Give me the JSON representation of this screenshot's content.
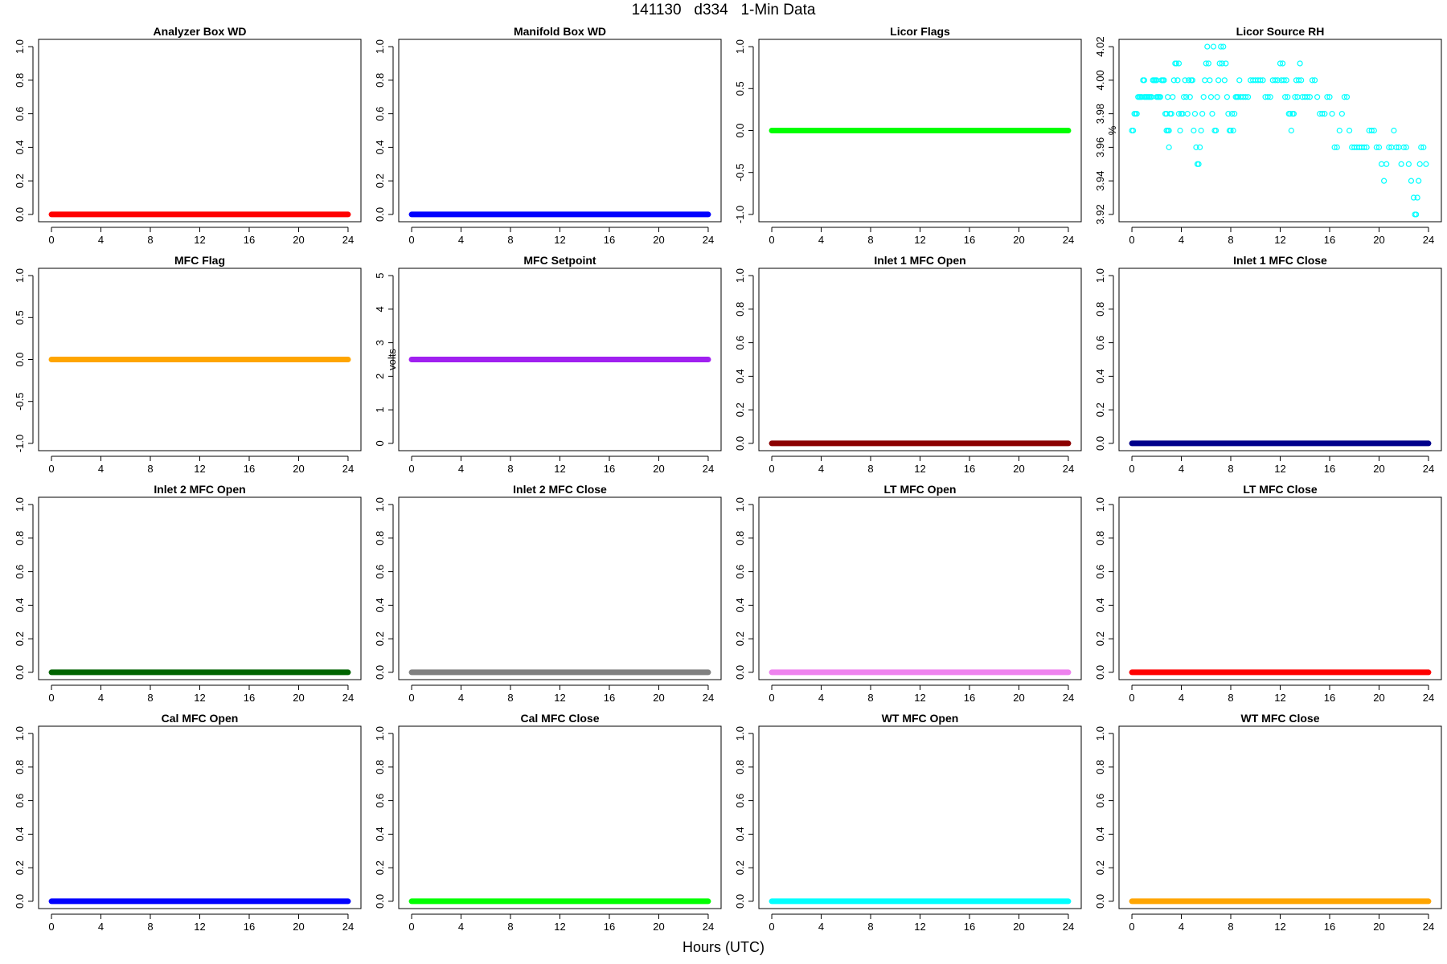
{
  "figure": {
    "title": "141130   d334   1-Min Data",
    "xlabel": "Hours (UTC)"
  },
  "chart_data": [
    {
      "type": "scatter",
      "title": "Analyzer Box WD",
      "ylabel": "",
      "xlim": [
        0,
        24
      ],
      "xticks": [
        0,
        4,
        8,
        12,
        16,
        20,
        24
      ],
      "ylim": [
        0,
        1
      ],
      "yticks": [
        "0.0",
        "0.2",
        "0.4",
        "0.6",
        "0.8",
        "1.0"
      ],
      "color": "#ff0000",
      "series": [
        {
          "x": [
            0,
            24
          ],
          "y": [
            0,
            0
          ],
          "note": "constant"
        }
      ]
    },
    {
      "type": "scatter",
      "title": "Manifold Box WD",
      "ylabel": "",
      "xlim": [
        0,
        24
      ],
      "xticks": [
        0,
        4,
        8,
        12,
        16,
        20,
        24
      ],
      "ylim": [
        0,
        1
      ],
      "yticks": [
        "0.0",
        "0.2",
        "0.4",
        "0.6",
        "0.8",
        "1.0"
      ],
      "color": "#0000ff",
      "series": [
        {
          "x": [
            0,
            24
          ],
          "y": [
            0,
            0
          ]
        }
      ]
    },
    {
      "type": "scatter",
      "title": "Licor Flags",
      "ylabel": "",
      "xlim": [
        0,
        24
      ],
      "xticks": [
        0,
        4,
        8,
        12,
        16,
        20,
        24
      ],
      "ylim": [
        -1,
        1
      ],
      "yticks": [
        "-1.0",
        "-0.5",
        "0.0",
        "0.5",
        "1.0"
      ],
      "color": "#00ff00",
      "series": [
        {
          "x": [
            0,
            24
          ],
          "y": [
            0,
            0
          ]
        }
      ]
    },
    {
      "type": "scatter",
      "title": "Licor Source RH",
      "ylabel": "%",
      "xlim": [
        0,
        24
      ],
      "xticks": [
        0,
        4,
        8,
        12,
        16,
        20,
        24
      ],
      "ylim": [
        3.92,
        4.02
      ],
      "yticks": [
        "3.92",
        "3.94",
        "3.96",
        "3.98",
        "4.00",
        "4.02"
      ],
      "color": "#00ffff",
      "points": [
        [
          0.0,
          3.97
        ],
        [
          0.1,
          3.97
        ],
        [
          0.2,
          3.98
        ],
        [
          0.3,
          3.98
        ],
        [
          0.4,
          3.98
        ],
        [
          0.5,
          3.99
        ],
        [
          0.6,
          3.99
        ],
        [
          0.7,
          3.99
        ],
        [
          0.8,
          3.99
        ],
        [
          0.9,
          4.0
        ],
        [
          1.0,
          4.0
        ],
        [
          1.0,
          3.99
        ],
        [
          1.1,
          3.99
        ],
        [
          1.2,
          3.99
        ],
        [
          1.3,
          3.99
        ],
        [
          1.4,
          3.99
        ],
        [
          1.5,
          3.99
        ],
        [
          1.6,
          3.99
        ],
        [
          1.7,
          4.0
        ],
        [
          1.8,
          4.0
        ],
        [
          1.9,
          4.0
        ],
        [
          2.0,
          4.0
        ],
        [
          2.0,
          3.99
        ],
        [
          2.1,
          3.99
        ],
        [
          2.2,
          3.99
        ],
        [
          2.3,
          3.99
        ],
        [
          2.4,
          4.0
        ],
        [
          2.5,
          4.0
        ],
        [
          2.6,
          4.0
        ],
        [
          2.7,
          3.98
        ],
        [
          2.8,
          3.97
        ],
        [
          2.8,
          3.98
        ],
        [
          2.9,
          3.99
        ],
        [
          2.9,
          3.97
        ],
        [
          3.0,
          3.96
        ],
        [
          3.0,
          3.97
        ],
        [
          3.1,
          3.98
        ],
        [
          3.2,
          3.98
        ],
        [
          3.3,
          3.99
        ],
        [
          3.4,
          4.0
        ],
        [
          3.5,
          4.01
        ],
        [
          3.6,
          4.01
        ],
        [
          3.7,
          4.0
        ],
        [
          3.8,
          4.01
        ],
        [
          3.8,
          3.98
        ],
        [
          3.9,
          3.97
        ],
        [
          4.0,
          3.98
        ],
        [
          4.1,
          3.98
        ],
        [
          4.2,
          3.99
        ],
        [
          4.3,
          4.0
        ],
        [
          4.4,
          3.99
        ],
        [
          4.5,
          3.98
        ],
        [
          4.6,
          4.0
        ],
        [
          4.7,
          3.99
        ],
        [
          4.8,
          4.0
        ],
        [
          4.9,
          4.0
        ],
        [
          5.0,
          3.97
        ],
        [
          5.1,
          3.98
        ],
        [
          5.2,
          3.96
        ],
        [
          5.3,
          3.95
        ],
        [
          5.4,
          3.95
        ],
        [
          5.5,
          3.96
        ],
        [
          5.6,
          3.97
        ],
        [
          5.7,
          3.98
        ],
        [
          5.8,
          3.99
        ],
        [
          5.9,
          4.0
        ],
        [
          6.0,
          4.01
        ],
        [
          6.1,
          4.02
        ],
        [
          6.2,
          4.01
        ],
        [
          6.3,
          4.0
        ],
        [
          6.4,
          3.99
        ],
        [
          6.5,
          3.98
        ],
        [
          6.6,
          4.02
        ],
        [
          6.7,
          3.97
        ],
        [
          6.8,
          3.97
        ],
        [
          6.9,
          3.99
        ],
        [
          7.0,
          4.0
        ],
        [
          7.1,
          4.01
        ],
        [
          7.2,
          4.02
        ],
        [
          7.3,
          4.01
        ],
        [
          7.4,
          4.02
        ],
        [
          7.5,
          4.0
        ],
        [
          7.6,
          4.01
        ],
        [
          7.7,
          3.99
        ],
        [
          7.8,
          3.98
        ],
        [
          7.9,
          3.97
        ],
        [
          8.0,
          3.97
        ],
        [
          8.1,
          3.98
        ],
        [
          8.2,
          3.97
        ],
        [
          8.3,
          3.98
        ],
        [
          8.4,
          3.99
        ],
        [
          8.5,
          3.99
        ],
        [
          8.6,
          3.99
        ],
        [
          8.7,
          4.0
        ],
        [
          8.8,
          3.99
        ],
        [
          9.0,
          3.99
        ],
        [
          9.2,
          3.99
        ],
        [
          9.4,
          3.99
        ],
        [
          9.6,
          4.0
        ],
        [
          9.8,
          4.0
        ],
        [
          10.0,
          4.0
        ],
        [
          10.2,
          4.0
        ],
        [
          10.4,
          4.0
        ],
        [
          10.6,
          4.0
        ],
        [
          10.8,
          3.99
        ],
        [
          11.0,
          3.99
        ],
        [
          11.2,
          3.99
        ],
        [
          11.4,
          4.0
        ],
        [
          11.6,
          4.0
        ],
        [
          11.8,
          4.0
        ],
        [
          12.0,
          4.01
        ],
        [
          12.1,
          4.0
        ],
        [
          12.2,
          4.01
        ],
        [
          12.3,
          4.0
        ],
        [
          12.4,
          3.99
        ],
        [
          12.5,
          4.0
        ],
        [
          12.6,
          3.99
        ],
        [
          12.7,
          3.98
        ],
        [
          12.8,
          3.98
        ],
        [
          12.9,
          3.97
        ],
        [
          13.0,
          3.98
        ],
        [
          13.1,
          3.98
        ],
        [
          13.2,
          3.99
        ],
        [
          13.3,
          4.0
        ],
        [
          13.4,
          3.99
        ],
        [
          13.5,
          4.0
        ],
        [
          13.6,
          4.01
        ],
        [
          13.7,
          4.0
        ],
        [
          13.8,
          3.99
        ],
        [
          14.0,
          3.99
        ],
        [
          14.2,
          3.99
        ],
        [
          14.4,
          3.99
        ],
        [
          14.6,
          4.0
        ],
        [
          14.8,
          4.0
        ],
        [
          15.0,
          3.99
        ],
        [
          15.2,
          3.98
        ],
        [
          15.4,
          3.98
        ],
        [
          15.6,
          3.98
        ],
        [
          15.8,
          3.99
        ],
        [
          16.0,
          3.99
        ],
        [
          16.2,
          3.98
        ],
        [
          16.4,
          3.96
        ],
        [
          16.6,
          3.96
        ],
        [
          16.8,
          3.97
        ],
        [
          17.0,
          3.98
        ],
        [
          17.2,
          3.99
        ],
        [
          17.4,
          3.99
        ],
        [
          17.6,
          3.97
        ],
        [
          17.8,
          3.96
        ],
        [
          18.0,
          3.96
        ],
        [
          18.2,
          3.96
        ],
        [
          18.4,
          3.96
        ],
        [
          18.6,
          3.96
        ],
        [
          18.8,
          3.96
        ],
        [
          19.0,
          3.96
        ],
        [
          19.2,
          3.97
        ],
        [
          19.4,
          3.97
        ],
        [
          19.6,
          3.97
        ],
        [
          19.8,
          3.96
        ],
        [
          20.0,
          3.96
        ],
        [
          20.2,
          3.95
        ],
        [
          20.4,
          3.94
        ],
        [
          20.6,
          3.95
        ],
        [
          20.8,
          3.96
        ],
        [
          21.0,
          3.96
        ],
        [
          21.2,
          3.97
        ],
        [
          21.4,
          3.96
        ],
        [
          21.6,
          3.96
        ],
        [
          21.8,
          3.95
        ],
        [
          22.0,
          3.96
        ],
        [
          22.2,
          3.96
        ],
        [
          22.4,
          3.95
        ],
        [
          22.6,
          3.94
        ],
        [
          22.8,
          3.93
        ],
        [
          22.9,
          3.92
        ],
        [
          23.0,
          3.92
        ],
        [
          23.1,
          3.93
        ],
        [
          23.2,
          3.94
        ],
        [
          23.3,
          3.95
        ],
        [
          23.4,
          3.96
        ],
        [
          23.6,
          3.96
        ],
        [
          23.8,
          3.95
        ]
      ]
    },
    {
      "type": "scatter",
      "title": "MFC Flag",
      "ylabel": "",
      "xlim": [
        0,
        24
      ],
      "xticks": [
        0,
        4,
        8,
        12,
        16,
        20,
        24
      ],
      "ylim": [
        -1,
        1
      ],
      "yticks": [
        "-1.0",
        "-0.5",
        "0.0",
        "0.5",
        "1.0"
      ],
      "color": "#ffa500",
      "series": [
        {
          "x": [
            0,
            24
          ],
          "y": [
            0,
            0
          ]
        }
      ]
    },
    {
      "type": "scatter",
      "title": "MFC Setpoint",
      "ylabel": "volts",
      "xlim": [
        0,
        24
      ],
      "xticks": [
        0,
        4,
        8,
        12,
        16,
        20,
        24
      ],
      "ylim": [
        0,
        5
      ],
      "yticks": [
        "0",
        "1",
        "2",
        "3",
        "4",
        "5"
      ],
      "color": "#a020f0",
      "series": [
        {
          "x": [
            0,
            24
          ],
          "y": [
            2.5,
            2.5
          ]
        }
      ]
    },
    {
      "type": "scatter",
      "title": "Inlet 1 MFC Open",
      "ylabel": "",
      "xlim": [
        0,
        24
      ],
      "xticks": [
        0,
        4,
        8,
        12,
        16,
        20,
        24
      ],
      "ylim": [
        0,
        1
      ],
      "yticks": [
        "0.0",
        "0.2",
        "0.4",
        "0.6",
        "0.8",
        "1.0"
      ],
      "color": "#8b0000",
      "series": [
        {
          "x": [
            0,
            24
          ],
          "y": [
            0,
            0
          ]
        }
      ]
    },
    {
      "type": "scatter",
      "title": "Inlet 1 MFC Close",
      "ylabel": "",
      "xlim": [
        0,
        24
      ],
      "xticks": [
        0,
        4,
        8,
        12,
        16,
        20,
        24
      ],
      "ylim": [
        0,
        1
      ],
      "yticks": [
        "0.0",
        "0.2",
        "0.4",
        "0.6",
        "0.8",
        "1.0"
      ],
      "color": "#00008b",
      "series": [
        {
          "x": [
            0,
            24
          ],
          "y": [
            0,
            0
          ]
        }
      ]
    },
    {
      "type": "scatter",
      "title": "Inlet 2 MFC Open",
      "ylabel": "",
      "xlim": [
        0,
        24
      ],
      "xticks": [
        0,
        4,
        8,
        12,
        16,
        20,
        24
      ],
      "ylim": [
        0,
        1
      ],
      "yticks": [
        "0.0",
        "0.2",
        "0.4",
        "0.6",
        "0.8",
        "1.0"
      ],
      "color": "#006400",
      "series": [
        {
          "x": [
            0,
            24
          ],
          "y": [
            0,
            0
          ]
        }
      ]
    },
    {
      "type": "scatter",
      "title": "Inlet 2 MFC Close",
      "ylabel": "",
      "xlim": [
        0,
        24
      ],
      "xticks": [
        0,
        4,
        8,
        12,
        16,
        20,
        24
      ],
      "ylim": [
        0,
        1
      ],
      "yticks": [
        "0.0",
        "0.2",
        "0.4",
        "0.6",
        "0.8",
        "1.0"
      ],
      "color": "#808080",
      "series": [
        {
          "x": [
            0,
            24
          ],
          "y": [
            0,
            0
          ]
        }
      ]
    },
    {
      "type": "scatter",
      "title": "LT MFC Open",
      "ylabel": "",
      "xlim": [
        0,
        24
      ],
      "xticks": [
        0,
        4,
        8,
        12,
        16,
        20,
        24
      ],
      "ylim": [
        0,
        1
      ],
      "yticks": [
        "0.0",
        "0.2",
        "0.4",
        "0.6",
        "0.8",
        "1.0"
      ],
      "color": "#ee82ee",
      "series": [
        {
          "x": [
            0,
            24
          ],
          "y": [
            0,
            0
          ]
        }
      ]
    },
    {
      "type": "scatter",
      "title": "LT MFC Close",
      "ylabel": "",
      "xlim": [
        0,
        24
      ],
      "xticks": [
        0,
        4,
        8,
        12,
        16,
        20,
        24
      ],
      "ylim": [
        0,
        1
      ],
      "yticks": [
        "0.0",
        "0.2",
        "0.4",
        "0.6",
        "0.8",
        "1.0"
      ],
      "color": "#ff0000",
      "series": [
        {
          "x": [
            0,
            24
          ],
          "y": [
            0,
            0
          ]
        }
      ]
    },
    {
      "type": "scatter",
      "title": "Cal MFC Open",
      "ylabel": "",
      "xlim": [
        0,
        24
      ],
      "xticks": [
        0,
        4,
        8,
        12,
        16,
        20,
        24
      ],
      "ylim": [
        0,
        1
      ],
      "yticks": [
        "0.0",
        "0.2",
        "0.4",
        "0.6",
        "0.8",
        "1.0"
      ],
      "color": "#0000ff",
      "series": [
        {
          "x": [
            0,
            24
          ],
          "y": [
            0,
            0
          ]
        }
      ]
    },
    {
      "type": "scatter",
      "title": "Cal MFC Close",
      "ylabel": "",
      "xlim": [
        0,
        24
      ],
      "xticks": [
        0,
        4,
        8,
        12,
        16,
        20,
        24
      ],
      "ylim": [
        0,
        1
      ],
      "yticks": [
        "0.0",
        "0.2",
        "0.4",
        "0.6",
        "0.8",
        "1.0"
      ],
      "color": "#00ff00",
      "series": [
        {
          "x": [
            0,
            24
          ],
          "y": [
            0,
            0
          ]
        }
      ]
    },
    {
      "type": "scatter",
      "title": "WT MFC Open",
      "ylabel": "",
      "xlim": [
        0,
        24
      ],
      "xticks": [
        0,
        4,
        8,
        12,
        16,
        20,
        24
      ],
      "ylim": [
        0,
        1
      ],
      "yticks": [
        "0.0",
        "0.2",
        "0.4",
        "0.6",
        "0.8",
        "1.0"
      ],
      "color": "#00ffff",
      "series": [
        {
          "x": [
            0,
            24
          ],
          "y": [
            0,
            0
          ]
        }
      ]
    },
    {
      "type": "scatter",
      "title": "WT MFC Close",
      "ylabel": "",
      "xlim": [
        0,
        24
      ],
      "xticks": [
        0,
        4,
        8,
        12,
        16,
        20,
        24
      ],
      "ylim": [
        0,
        1
      ],
      "yticks": [
        "0.0",
        "0.2",
        "0.4",
        "0.6",
        "0.8",
        "1.0"
      ],
      "color": "#ffa500",
      "series": [
        {
          "x": [
            0,
            24
          ],
          "y": [
            0,
            0
          ]
        }
      ]
    }
  ]
}
